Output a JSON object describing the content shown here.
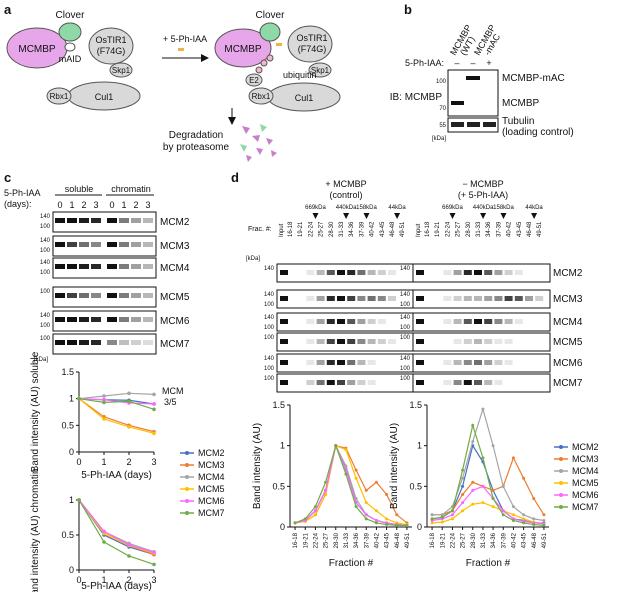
{
  "panels": {
    "a": {
      "letter": "a",
      "left_oval": "MCMBP",
      "right_oval": "MCMBP",
      "clover": "Clover",
      "maid": "mAID",
      "ostir1": "OsTIR1",
      "ostir1_mut": "(F74G)",
      "skp1": "Skp1",
      "cul1": "Cul1",
      "rbx1": "Rbx1",
      "e2": "E2",
      "ubiquitin": "ubiquitin",
      "treatment": "+ 5-Ph-IAA",
      "degradation_l1": "Degradation",
      "degradation_l2": "by proteasome",
      "colors": {
        "mcmbp": "#e7a6e9",
        "clover": "#8fd9a8",
        "grey": "#d9d9d9",
        "ub": "#f2b7cf"
      }
    },
    "b": {
      "letter": "b",
      "col1_l1": "MCMBP",
      "col1_l2": "(WT)",
      "col2_l1": "MCMBP",
      "col2_l2": "-mAC",
      "treat_label": "5-Ph-IAA:",
      "signs": [
        "–",
        "–",
        "+"
      ],
      "ib": "IB: MCMBP",
      "band_top": "MCMBP-mAC",
      "band_mid": "MCMBP",
      "loading_l1": "Tubulin",
      "loading_l2": "(loading control)",
      "mw": [
        "100",
        "70",
        "55"
      ],
      "kda": "[kDa]"
    },
    "c": {
      "letter": "c",
      "treat_l1": "5-Ph-IAA",
      "treat_l2": "(days):",
      "soluble": "soluble",
      "chromatin": "chromatin",
      "days": [
        "0",
        "1",
        "2",
        "3",
        "0",
        "1",
        "2",
        "3"
      ],
      "blots": [
        {
          "name": "MCM2",
          "mw": [
            "140",
            "100"
          ]
        },
        {
          "name": "MCM3",
          "mw": [
            "140",
            "100"
          ]
        },
        {
          "name": "MCM4",
          "mw": [
            "140",
            "100"
          ]
        },
        {
          "name": "MCM5",
          "mw": [
            "100"
          ]
        },
        {
          "name": "MCM6",
          "mw": [
            "140",
            "100"
          ]
        },
        {
          "name": "MCM7",
          "mw": [
            "100"
          ]
        }
      ],
      "kda": "[kDa]",
      "annot_l1": "MCM",
      "annot_l2": "3/5",
      "legend": [
        "MCM2",
        "MCM3",
        "MCM4",
        "MCM5",
        "MCM6",
        "MCM7"
      ]
    },
    "d": {
      "letter": "d",
      "ctrl_l1": "+ MCMBP",
      "ctrl_l2": "(control)",
      "deg_l1": "− MCMBP",
      "deg_l2": "(+ 5-Ph-IAA)",
      "frac_label": "Frac. #:",
      "kda": "[kDa]",
      "input": "Input",
      "fractions": [
        "16-18",
        "19-21",
        "22-24",
        "25-27",
        "28-30",
        "31-33",
        "34-36",
        "37-39",
        "40-42",
        "43-45",
        "46-48",
        "49-51"
      ],
      "markers": [
        "669kDa",
        "440kDa",
        "158kDa",
        "44kDa"
      ],
      "blots": [
        {
          "name": "MCM2",
          "mw": [
            "140"
          ]
        },
        {
          "name": "MCM3",
          "mw": [
            "140",
            "100"
          ]
        },
        {
          "name": "MCM4",
          "mw": [
            "140",
            "100"
          ]
        },
        {
          "name": "MCM5",
          "mw": [
            "100"
          ]
        },
        {
          "name": "MCM6",
          "mw": [
            "140",
            "100"
          ]
        },
        {
          "name": "MCM7",
          "mw": [
            "100"
          ]
        }
      ],
      "legend": [
        "MCM2",
        "MCM3",
        "MCM4",
        "MCM5",
        "MCM6",
        "MCM7"
      ]
    }
  },
  "chart_data": [
    {
      "type": "line",
      "panel": "c-soluble",
      "xlabel": "5-Ph-IAA (days)",
      "ylabel": "Band intensity (AU) soluble",
      "x": [
        0,
        1,
        2,
        3
      ],
      "xlim": [
        0,
        3
      ],
      "ylim": [
        0,
        1.5
      ],
      "yticks": [
        0,
        0.5,
        1.0,
        1.5
      ],
      "series": [
        {
          "name": "MCM2",
          "color": "#4472c4",
          "values": [
            1.0,
            0.98,
            0.97,
            0.9
          ]
        },
        {
          "name": "MCM3",
          "color": "#ed7d31",
          "values": [
            1.0,
            0.66,
            0.5,
            0.38
          ]
        },
        {
          "name": "MCM4",
          "color": "#a5a5a5",
          "values": [
            1.0,
            1.05,
            1.1,
            1.08
          ]
        },
        {
          "name": "MCM5",
          "color": "#ffc000",
          "values": [
            1.0,
            0.62,
            0.47,
            0.35
          ]
        },
        {
          "name": "MCM6",
          "color": "#ff66ff",
          "values": [
            1.0,
            0.98,
            0.92,
            0.9
          ]
        },
        {
          "name": "MCM7",
          "color": "#70ad47",
          "values": [
            1.0,
            0.93,
            0.95,
            0.8
          ]
        }
      ]
    },
    {
      "type": "line",
      "panel": "c-chromatin",
      "xlabel": "5-Ph-IAA (days)",
      "ylabel": "Band intensity (AU) chromatin",
      "x": [
        0,
        1,
        2,
        3
      ],
      "xlim": [
        0,
        3
      ],
      "ylim": [
        0,
        1.0
      ],
      "yticks": [
        0,
        0.5,
        1.0
      ],
      "series": [
        {
          "name": "MCM2",
          "color": "#4472c4",
          "values": [
            1.0,
            0.5,
            0.33,
            0.22
          ]
        },
        {
          "name": "MCM3",
          "color": "#ed7d31",
          "values": [
            1.0,
            0.55,
            0.35,
            0.22
          ]
        },
        {
          "name": "MCM4",
          "color": "#a5a5a5",
          "values": [
            1.0,
            0.55,
            0.38,
            0.26
          ]
        },
        {
          "name": "MCM5",
          "color": "#ffc000",
          "values": [
            1.0,
            0.52,
            0.35,
            0.24
          ]
        },
        {
          "name": "MCM6",
          "color": "#ff66ff",
          "values": [
            1.0,
            0.55,
            0.36,
            0.25
          ]
        },
        {
          "name": "MCM7",
          "color": "#70ad47",
          "values": [
            1.0,
            0.4,
            0.2,
            0.08
          ]
        }
      ]
    },
    {
      "type": "line",
      "panel": "d-control",
      "xlabel": "Fraction #",
      "ylabel": "Band intensity (AU)",
      "categories": [
        "16-18",
        "19-21",
        "22-24",
        "25-27",
        "28-30",
        "31-33",
        "34-36",
        "37-39",
        "40-42",
        "43-45",
        "46-48",
        "49-51"
      ],
      "ylim": [
        0,
        1.5
      ],
      "yticks": [
        0,
        0.5,
        1.0,
        1.5
      ],
      "series": [
        {
          "name": "MCM2",
          "color": "#4472c4",
          "values": [
            0.05,
            0.08,
            0.2,
            0.45,
            1.0,
            0.72,
            0.3,
            0.15,
            0.08,
            0.05,
            0.03,
            0.02
          ]
        },
        {
          "name": "MCM3",
          "color": "#ed7d31",
          "values": [
            0.05,
            0.07,
            0.15,
            0.4,
            1.0,
            0.97,
            0.7,
            0.45,
            0.55,
            0.4,
            0.15,
            0.05
          ]
        },
        {
          "name": "MCM4",
          "color": "#a5a5a5",
          "values": [
            0.05,
            0.08,
            0.2,
            0.45,
            1.0,
            0.75,
            0.35,
            0.15,
            0.08,
            0.05,
            0.03,
            0.02
          ]
        },
        {
          "name": "MCM5",
          "color": "#ffc000",
          "values": [
            0.05,
            0.07,
            0.15,
            0.4,
            1.0,
            0.95,
            0.6,
            0.3,
            0.2,
            0.1,
            0.05,
            0.03
          ]
        },
        {
          "name": "MCM6",
          "color": "#ff66ff",
          "values": [
            0.05,
            0.08,
            0.2,
            0.45,
            1.0,
            0.7,
            0.3,
            0.15,
            0.08,
            0.05,
            0.03,
            0.02
          ]
        },
        {
          "name": "MCM7",
          "color": "#70ad47",
          "values": [
            0.05,
            0.1,
            0.25,
            0.55,
            1.0,
            0.65,
            0.25,
            0.1,
            0.05,
            0.03,
            0.02,
            0.02
          ]
        }
      ]
    },
    {
      "type": "line",
      "panel": "d-degron",
      "xlabel": "Fraction #",
      "ylabel": "Band intensity (AU)",
      "categories": [
        "16-18",
        "19-21",
        "22-24",
        "25-27",
        "28-30",
        "31-33",
        "34-36",
        "37-39",
        "40-42",
        "43-45",
        "46-48",
        "49-51"
      ],
      "ylim": [
        0,
        1.5
      ],
      "yticks": [
        0,
        0.5,
        1.0,
        1.5
      ],
      "series": [
        {
          "name": "MCM2",
          "color": "#4472c4",
          "values": [
            0.1,
            0.12,
            0.2,
            0.5,
            1.0,
            0.8,
            0.45,
            0.2,
            0.1,
            0.08,
            0.05,
            0.05
          ]
        },
        {
          "name": "MCM3",
          "color": "#ed7d31",
          "values": [
            0.15,
            0.15,
            0.2,
            0.4,
            0.55,
            0.5,
            0.45,
            0.5,
            0.85,
            0.6,
            0.35,
            0.15
          ]
        },
        {
          "name": "MCM4",
          "color": "#a5a5a5",
          "values": [
            0.15,
            0.15,
            0.25,
            0.6,
            1.05,
            1.45,
            1.0,
            0.5,
            0.25,
            0.15,
            0.1,
            0.08
          ]
        },
        {
          "name": "MCM5",
          "color": "#ffc000",
          "values": [
            0.05,
            0.06,
            0.1,
            0.2,
            0.28,
            0.3,
            0.25,
            0.2,
            0.15,
            0.1,
            0.06,
            0.04
          ]
        },
        {
          "name": "MCM6",
          "color": "#ff66ff",
          "values": [
            0.08,
            0.1,
            0.15,
            0.3,
            0.45,
            0.5,
            0.35,
            0.2,
            0.1,
            0.07,
            0.05,
            0.04
          ]
        },
        {
          "name": "MCM7",
          "color": "#70ad47",
          "values": [
            0.1,
            0.12,
            0.2,
            0.7,
            1.25,
            0.85,
            0.35,
            0.15,
            0.08,
            0.05,
            0.03,
            0.02
          ]
        }
      ]
    }
  ]
}
